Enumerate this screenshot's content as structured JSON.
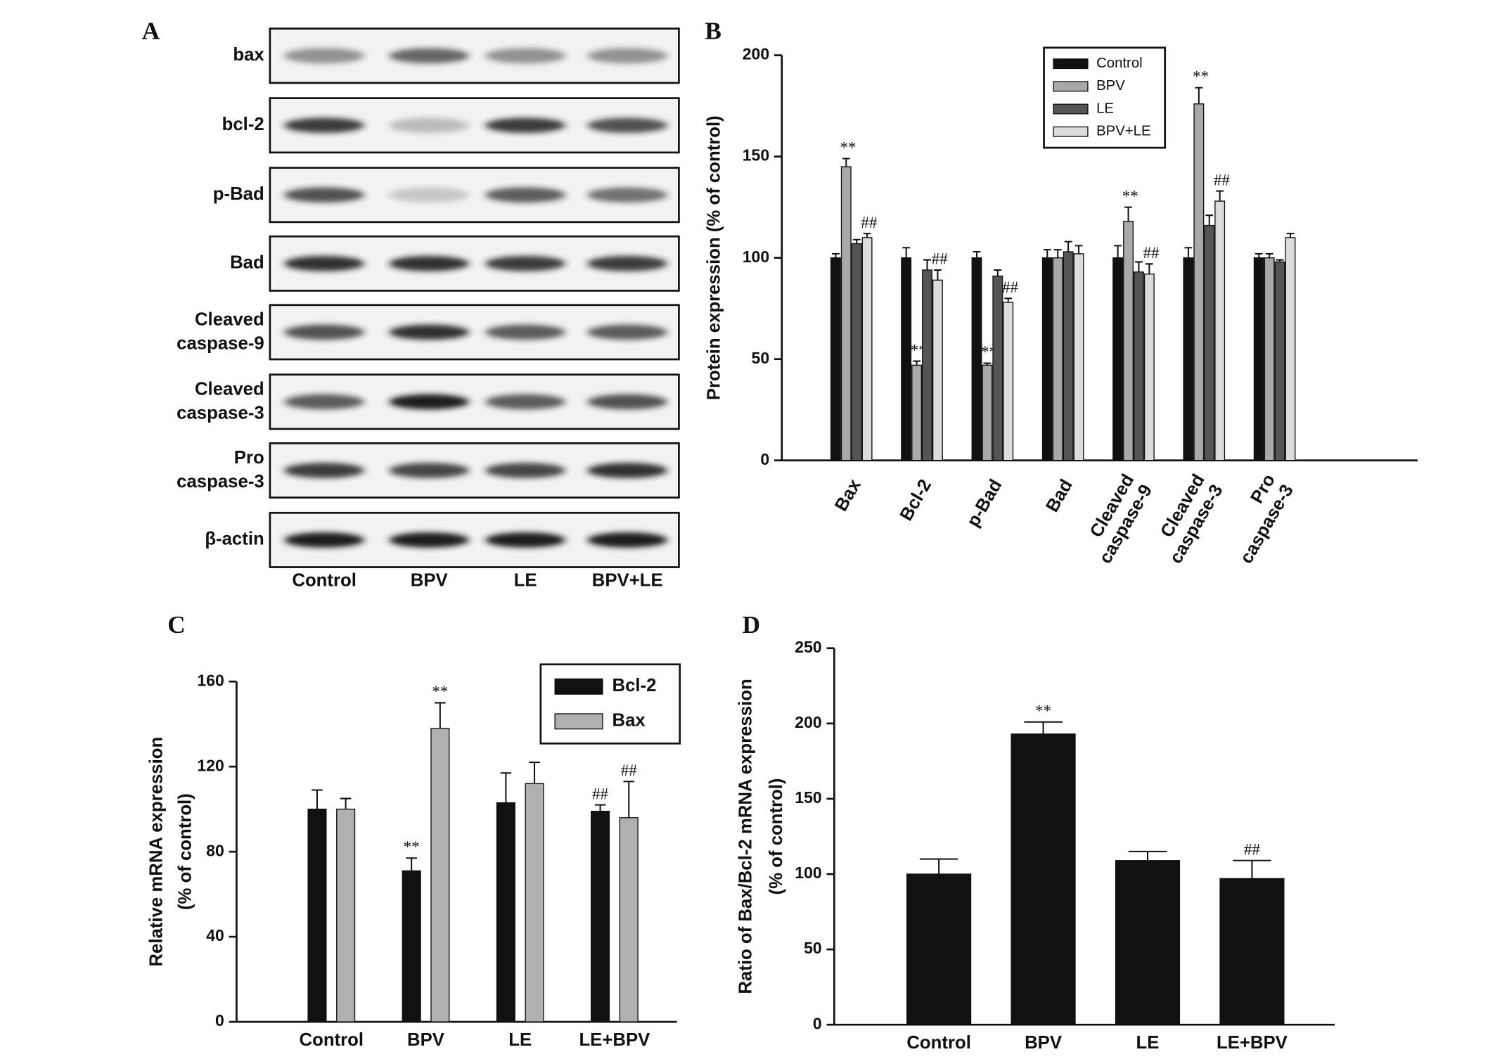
{
  "blot": {
    "panel_label": "A",
    "rows": [
      "bax",
      "bcl-2",
      "p-Bad",
      "Bad",
      "Cleaved caspase-9",
      "Cleaved caspase-3",
      "Pro caspase-3",
      "β-actin"
    ],
    "lanes": [
      "Control",
      "BPV",
      "LE",
      "BPV+LE"
    ]
  },
  "chart_data": [
    {
      "type": "bar",
      "panel_label": "B",
      "y_label": "Protein expression  (% of control)",
      "categories": [
        "Bax",
        "Bcl-2",
        "p-Bad",
        "Bad",
        "Cleaved caspase-9",
        "Cleaved caspase-3",
        "Pro caspase-3"
      ],
      "series": [
        {
          "name": "Control",
          "color": "#111111",
          "values": [
            100,
            100,
            100,
            100,
            100,
            100,
            100
          ],
          "errors": [
            2,
            5,
            3,
            4,
            6,
            5,
            2
          ],
          "marks": [
            null,
            null,
            null,
            null,
            null,
            null,
            null
          ]
        },
        {
          "name": "BPV",
          "color": "#a9a9a9",
          "values": [
            145,
            47,
            47,
            100,
            118,
            176,
            100
          ],
          "errors": [
            4,
            2,
            1,
            4,
            7,
            8,
            2
          ],
          "marks": [
            "**",
            "**",
            "**",
            null,
            "**",
            "**",
            null
          ]
        },
        {
          "name": "LE",
          "color": "#555555",
          "values": [
            107,
            94,
            91,
            103,
            93,
            116,
            98
          ],
          "errors": [
            2,
            5,
            3,
            5,
            5,
            5,
            1
          ],
          "marks": [
            null,
            null,
            null,
            null,
            null,
            null,
            null
          ]
        },
        {
          "name": "BPV+LE",
          "color": "#dcdcdc",
          "values": [
            110,
            89,
            78,
            102,
            92,
            128,
            110
          ],
          "errors": [
            2,
            5,
            2,
            4,
            5,
            5,
            2
          ],
          "marks": [
            "##",
            "##",
            "##",
            null,
            "##",
            "##",
            null
          ]
        }
      ],
      "ylim": [
        0,
        200
      ],
      "yticks": [
        0,
        50,
        100,
        150,
        200
      ],
      "legend": "upper right"
    },
    {
      "type": "bar",
      "panel_label": "C",
      "y_label": [
        "Relative mRNA expression",
        "(% of control)"
      ],
      "categories": [
        "Control",
        "BPV",
        "LE",
        "LE+BPV"
      ],
      "series": [
        {
          "name": "Bcl-2",
          "color": "#111111",
          "values": [
            100,
            71,
            103,
            99
          ],
          "errors": [
            9,
            6,
            14,
            3
          ],
          "marks": [
            null,
            "**",
            null,
            "##"
          ]
        },
        {
          "name": "Bax",
          "color": "#b0b0b0",
          "values": [
            100,
            138,
            112,
            96
          ],
          "errors": [
            5,
            12,
            10,
            17
          ],
          "marks": [
            null,
            "**",
            null,
            "##"
          ]
        }
      ],
      "ylim": [
        0,
        160
      ],
      "yticks": [
        0,
        40,
        80,
        120,
        160
      ],
      "legend": "upper right"
    },
    {
      "type": "bar",
      "panel_label": "D",
      "y_label": [
        "Ratio of Bax/Bcl-2 mRNA expression",
        "(% of control)"
      ],
      "categories": [
        "Control",
        "BPV",
        "LE",
        "LE+BPV"
      ],
      "values": [
        100,
        193,
        109,
        97
      ],
      "errors": [
        10,
        8,
        6,
        12
      ],
      "marks": [
        null,
        "**",
        null,
        "##"
      ],
      "color": "#111111",
      "ylim": [
        0,
        250
      ],
      "yticks": [
        0,
        50,
        100,
        150,
        200,
        250
      ]
    }
  ]
}
